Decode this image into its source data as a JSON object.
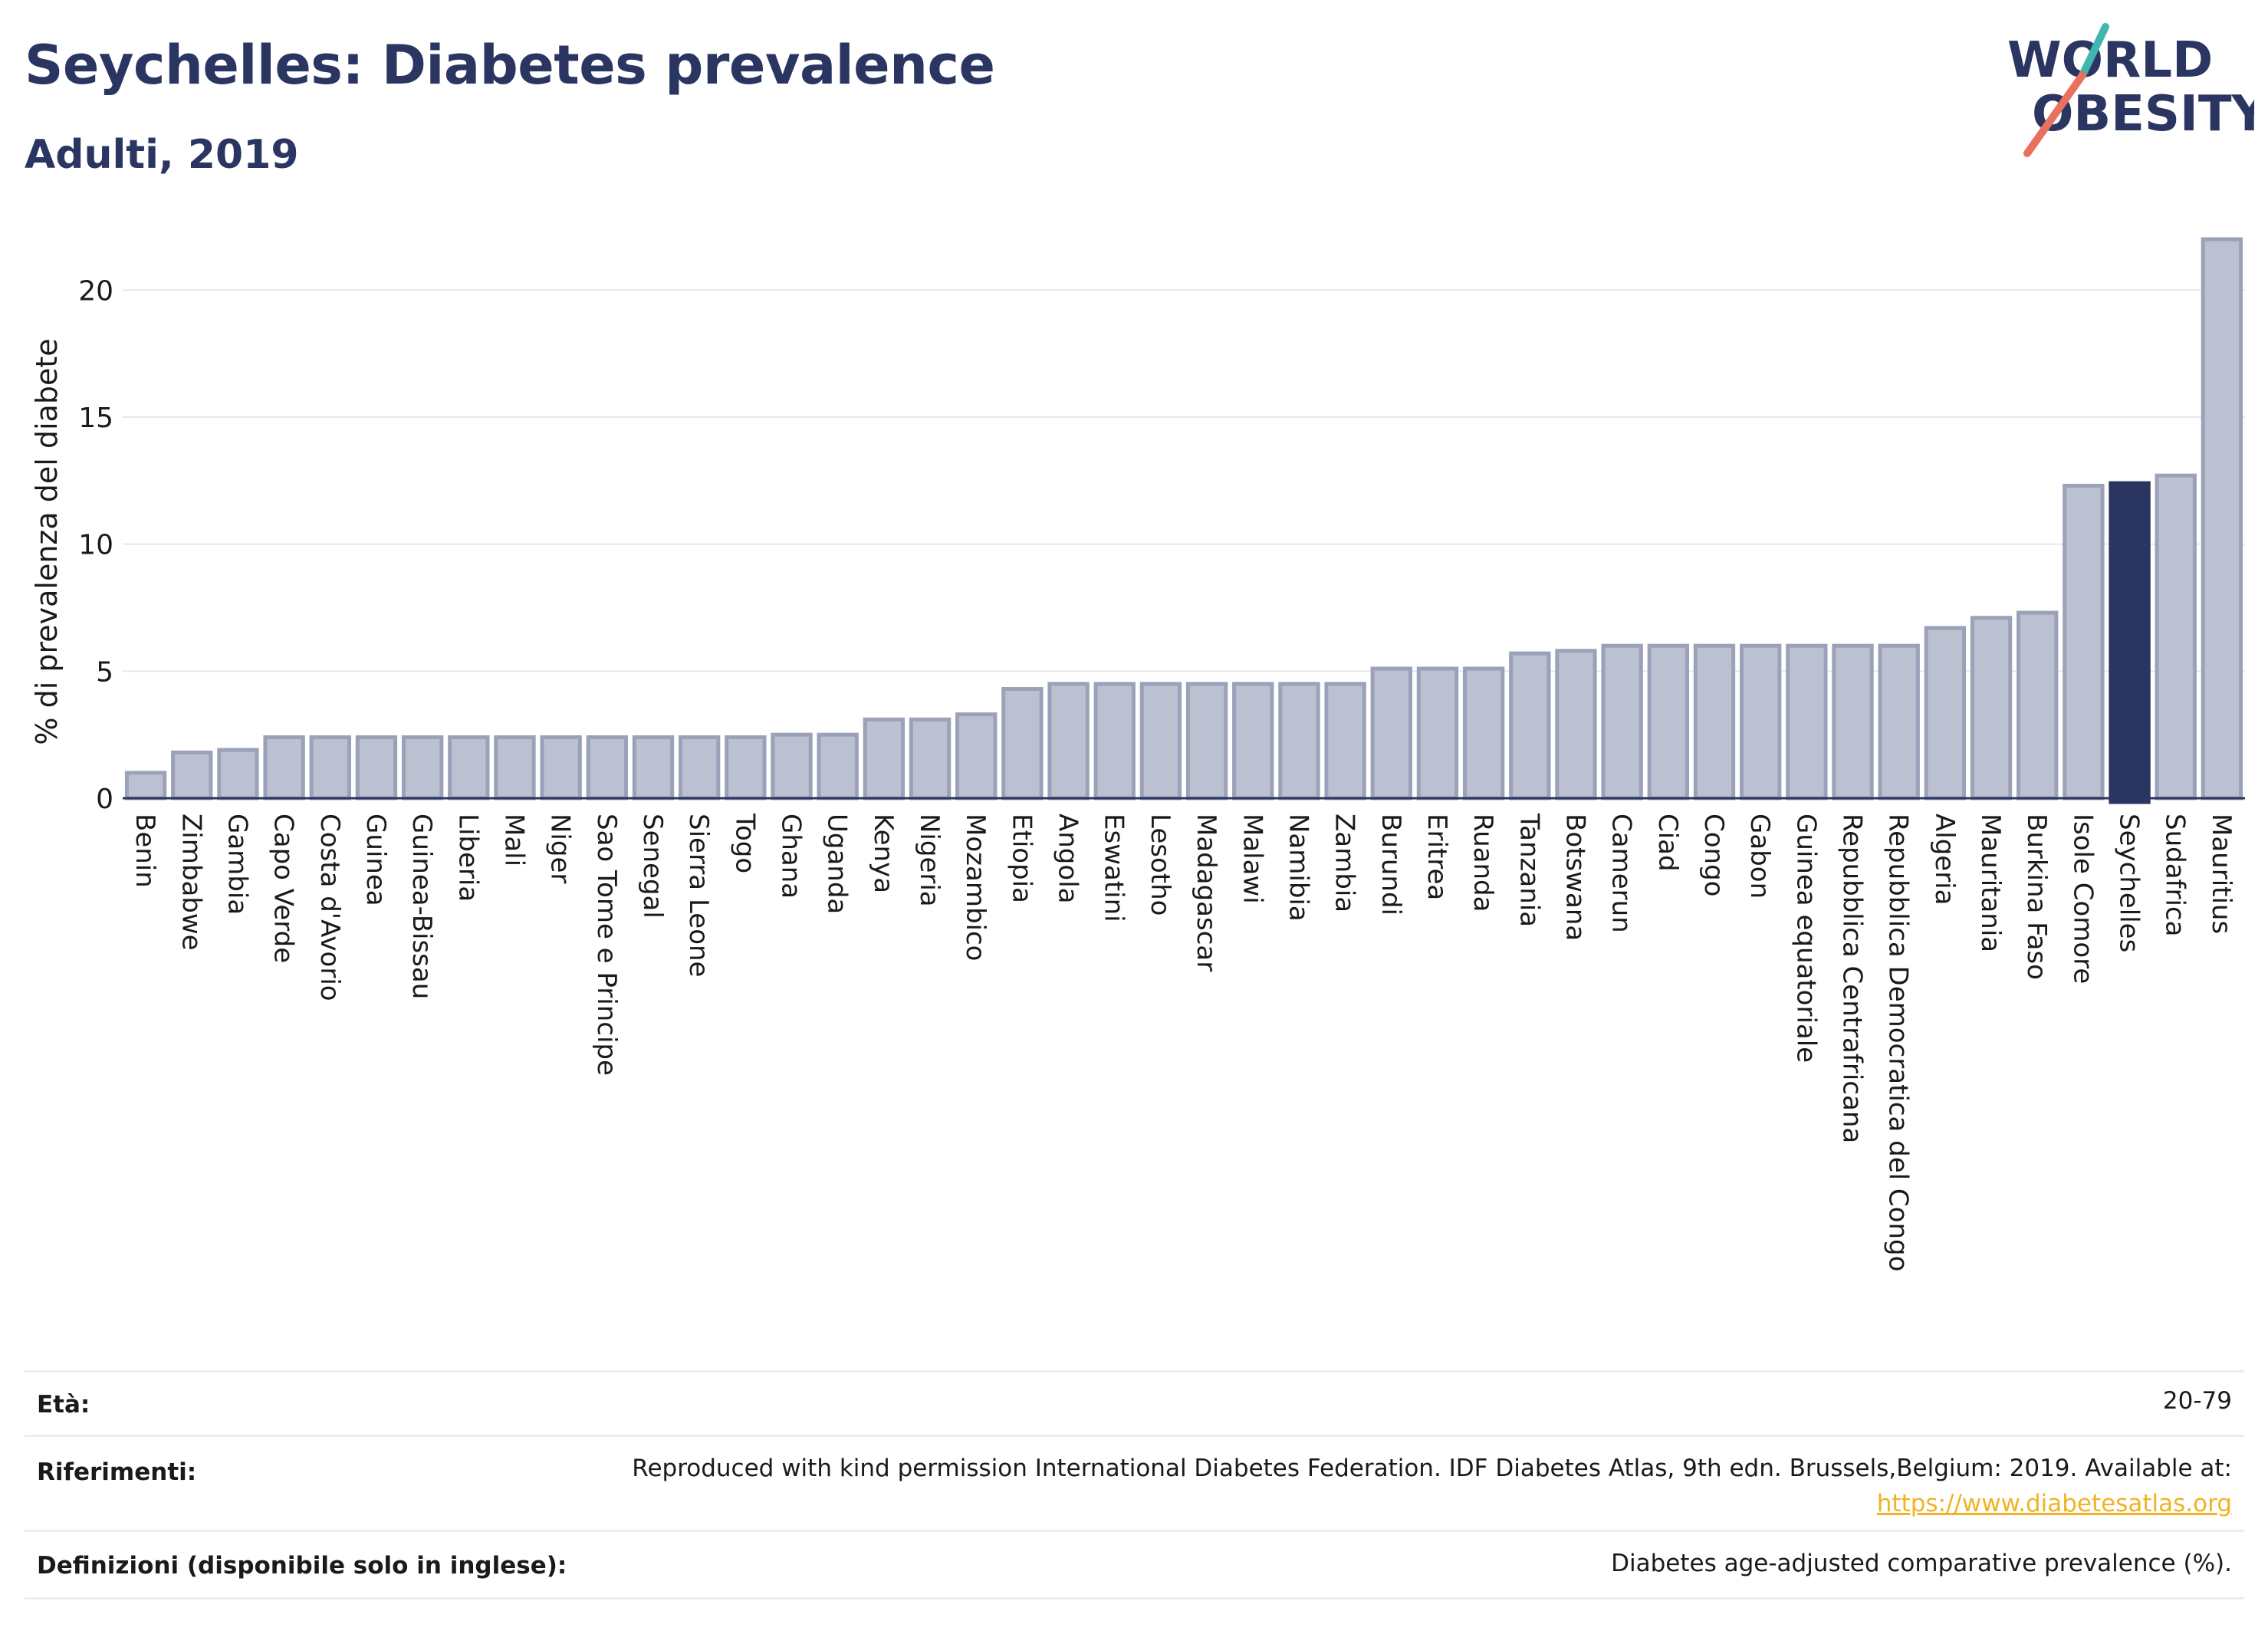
{
  "header": {
    "title": "Seychelles: Diabetes prevalence",
    "subtitle": "Adulti, 2019",
    "logo_line1": "WORLD",
    "logo_line2": "OBESITY"
  },
  "colors": {
    "bar": "#bcc1d1",
    "bar_stroke": "#9aa1b8",
    "highlight": "#2b3561",
    "title": "#2b3561",
    "link": "#f0b323",
    "logo_teal": "#3fb6b0",
    "logo_red": "#e8705f"
  },
  "chart_data": {
    "type": "bar",
    "title": "",
    "ylabel": "% di prevalenza del diabete",
    "ylim": [
      0,
      22
    ],
    "yticks": [
      0,
      5,
      10,
      15,
      20
    ],
    "highlight": "Seychelles",
    "categories": [
      "Benin",
      "Zimbabwe",
      "Gambia",
      "Capo Verde",
      "Costa d'Avorio",
      "Guinea",
      "Guinea-Bissau",
      "Liberia",
      "Mali",
      "Niger",
      "Sao Tome e Principe",
      "Senegal",
      "Sierra Leone",
      "Togo",
      "Ghana",
      "Uganda",
      "Kenya",
      "Nigeria",
      "Mozambico",
      "Etiopia",
      "Angola",
      "Eswatini",
      "Lesotho",
      "Madagascar",
      "Malawi",
      "Namibia",
      "Zambia",
      "Burundi",
      "Eritrea",
      "Ruanda",
      "Tanzania",
      "Botswana",
      "Camerun",
      "Ciad",
      "Congo",
      "Gabon",
      "Guinea equatoriale",
      "Repubblica Centrafricana",
      "Repubblica Democratica del Congo",
      "Algeria",
      "Mauritania",
      "Burkina Faso",
      "Isole Comore",
      "Seychelles",
      "Sudafrica",
      "Mauritius"
    ],
    "values": [
      1.0,
      1.8,
      1.9,
      2.4,
      2.4,
      2.4,
      2.4,
      2.4,
      2.4,
      2.4,
      2.4,
      2.4,
      2.4,
      2.4,
      2.5,
      2.5,
      3.1,
      3.1,
      3.3,
      4.3,
      4.5,
      4.5,
      4.5,
      4.5,
      4.5,
      4.5,
      4.5,
      5.1,
      5.1,
      5.1,
      5.7,
      5.8,
      6.0,
      6.0,
      6.0,
      6.0,
      6.0,
      6.0,
      6.0,
      6.7,
      7.1,
      7.3,
      12.3,
      12.4,
      12.7,
      22.0
    ]
  },
  "info": {
    "age_label": "Età:",
    "age_value": "20-79",
    "ref_label": "Riferimenti:",
    "ref_text": "Reproduced with kind permission International Diabetes Federation. IDF Diabetes Atlas, 9th edn. Brussels,Belgium: 2019. Available at:",
    "ref_link": "https://www.diabetesatlas.org",
    "def_label": "Definizioni (disponibile solo in inglese):",
    "def_text": "Diabetes age-adjusted comparative prevalence (%)."
  }
}
